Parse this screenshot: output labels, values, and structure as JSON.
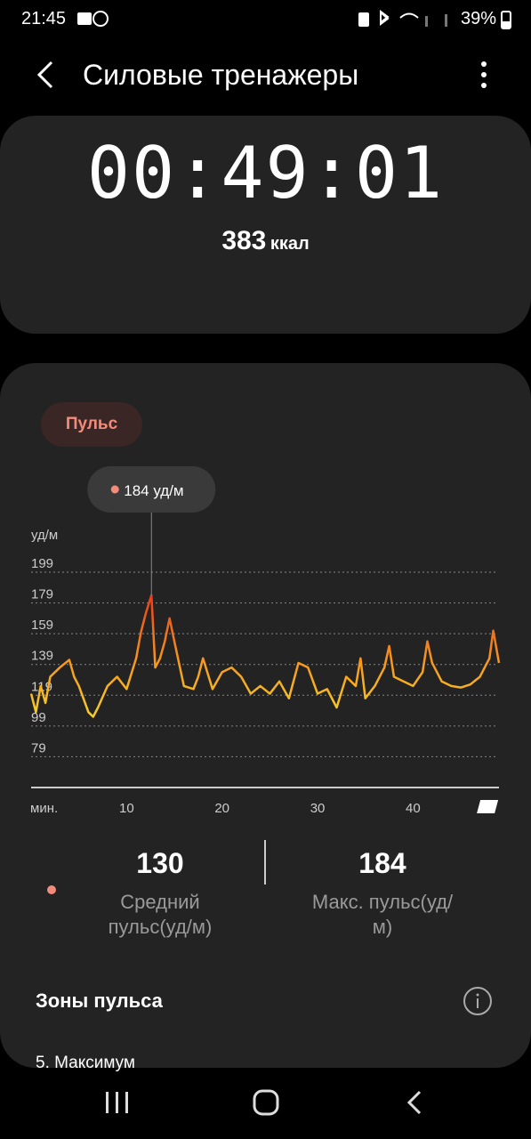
{
  "status_bar": {
    "time": "21:45",
    "battery": "39%"
  },
  "header": {
    "title": "Силовые тренажеры"
  },
  "summary": {
    "duration": "00:49:01",
    "calories": "383",
    "calories_unit": "ккал"
  },
  "chart_data": {
    "type": "line",
    "tab": "Пульс",
    "tooltip": "184 уд/м",
    "y_label": "уд/м",
    "x_label": "мин.",
    "x": [
      0,
      0.5,
      1,
      1.5,
      2,
      3,
      4,
      4.5,
      5,
      6,
      6.5,
      7,
      8,
      9,
      10,
      11,
      11.5,
      12,
      12.6,
      13,
      13.5,
      14,
      14.5,
      15,
      16,
      17,
      17.5,
      18,
      19,
      20,
      21,
      22,
      23,
      24,
      25,
      26,
      27,
      28,
      29,
      30,
      31,
      32,
      33,
      34,
      34.5,
      35,
      36,
      37,
      37.5,
      38,
      39,
      40,
      41,
      41.5,
      42,
      43,
      44,
      45,
      46,
      47,
      48,
      48.4,
      49
    ],
    "series": [
      {
        "name": "Пульс",
        "colors": [
          "#e8401c",
          "#f7941d",
          "#f5d32a"
        ],
        "values": [
          120,
          108,
          125,
          114,
          131,
          137,
          142,
          131,
          125,
          108,
          105,
          111,
          125,
          131,
          123,
          143,
          160,
          172,
          184,
          137,
          143,
          154,
          169,
          154,
          125,
          123,
          131,
          143,
          123,
          134,
          137,
          131,
          120,
          125,
          120,
          128,
          117,
          140,
          137,
          120,
          123,
          111,
          131,
          125,
          143,
          117,
          125,
          137,
          151,
          131,
          128,
          125,
          134,
          154,
          140,
          128,
          125,
          124,
          126,
          131,
          143,
          161,
          140
        ]
      }
    ],
    "xlim": [
      0,
      49
    ],
    "ylim": [
      59,
      199
    ],
    "xticks": [
      10,
      20,
      30,
      40
    ],
    "yticks": [
      79,
      99,
      119,
      139,
      159,
      179,
      199
    ],
    "grid": true
  },
  "stats": [
    {
      "value": "130",
      "label": "Средний пульс(уд/м)"
    },
    {
      "value": "184",
      "label": "Макс. пульс(уд/м)"
    }
  ],
  "zones": {
    "title": "Зоны пульса",
    "first": "5. Максимум"
  }
}
